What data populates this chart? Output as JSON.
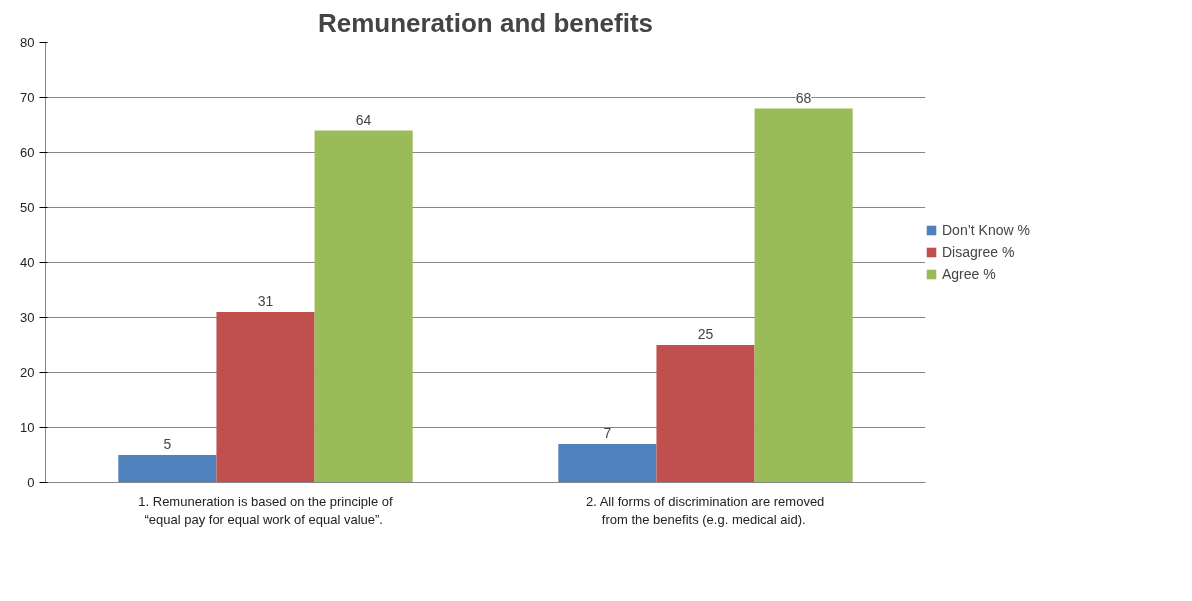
{
  "chart_data": {
    "type": "bar",
    "title": "Remuneration and benefits",
    "categories": [
      "1. Remuneration is based on the principle of “equal  pay for equal work of equal value”.",
      "2. All forms of discrimination are removed from the  benefits (e.g. medical aid)."
    ],
    "series": [
      {
        "name": "Don’t Know %",
        "color": "#4f81bd",
        "values": [
          5,
          7
        ]
      },
      {
        "name": "Disagree %",
        "color": "#c0504d",
        "values": [
          31,
          25
        ]
      },
      {
        "name": "Agree %",
        "color": "#9bbb59",
        "values": [
          64,
          68
        ]
      }
    ],
    "ylim": [
      0,
      80
    ],
    "yticks": [
      0,
      10,
      20,
      30,
      40,
      50,
      60,
      70,
      80
    ],
    "grid": "y",
    "legend": "right",
    "data_labels": true
  }
}
